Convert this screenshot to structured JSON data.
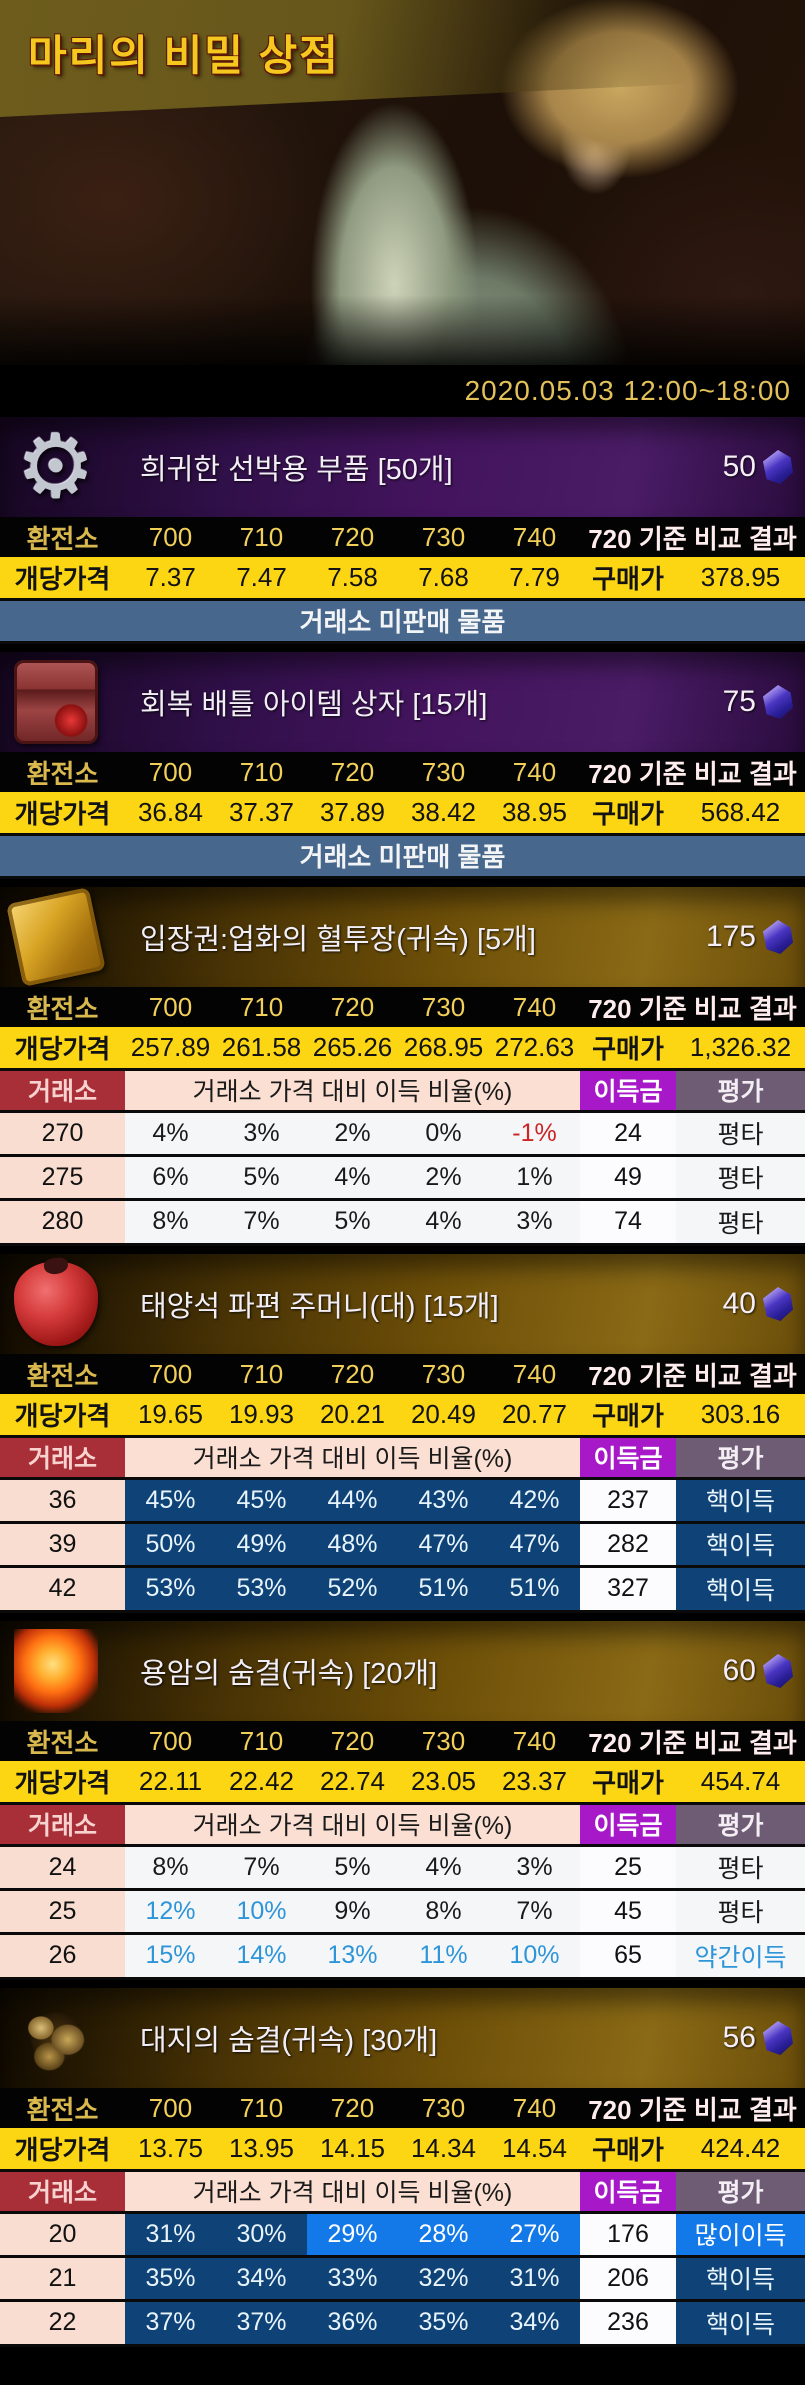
{
  "banner": {
    "title": "마리의 비밀 상점"
  },
  "date_range": "2020.05.03 12:00~18:00",
  "labels": {
    "exchange": "환전소",
    "unit_price": "개당가격",
    "compare_header": "720 기준 비교 결과",
    "purchase_price": "구매가",
    "market": "거래소",
    "ratio_header": "거래소 가격 대비 이득 비율(%)",
    "profit_amount": "이득금",
    "evaluation": "평가",
    "not_sold": "거래소 미판매 물품"
  },
  "exchange_rates": [
    "700",
    "710",
    "720",
    "730",
    "740"
  ],
  "colors": {
    "accent_gold": "#f4c81e",
    "exchange_row_bg": "#030303",
    "unit_row_bg": "#fcd612",
    "compare_header_bg": "#c2444c",
    "purchase_label_bg": "#f8bcc4",
    "not_sold_bg": "#47688c",
    "market_label_bg": "#a82f38",
    "ratio_header_bg": "#fbdfd2",
    "profit_header_bg": "#a718c8",
    "eval_header_bg": "#6e5b74",
    "huge_profit_bg": "#0f4377",
    "big_profit_bg": "#1379e8",
    "slight_profit_text": "#2e95d8",
    "negative_text": "#cc2525"
  },
  "items": [
    {
      "name": "희귀한 선박용 부품 [50개]",
      "price": "50",
      "icon": "gear-icon",
      "grade": "epic",
      "unit_prices": [
        "7.37",
        "7.47",
        "7.58",
        "7.68",
        "7.79"
      ],
      "purchase_price": "378.95",
      "not_sold": true,
      "market_rows": []
    },
    {
      "name": "회복 배틀 아이템 상자 [15개]",
      "price": "75",
      "icon": "chest-icon",
      "grade": "epic",
      "unit_prices": [
        "36.84",
        "37.37",
        "37.89",
        "38.42",
        "38.95"
      ],
      "purchase_price": "568.42",
      "not_sold": true,
      "market_rows": []
    },
    {
      "name": "입장권:업화의 혈투장(귀속) [5개]",
      "price": "175",
      "icon": "ticket-icon",
      "grade": "legendary",
      "unit_prices": [
        "257.89",
        "261.58",
        "265.26",
        "268.95",
        "272.63"
      ],
      "purchase_price": "1,326.32",
      "not_sold": false,
      "market_rows": [
        {
          "market_price": "270",
          "ratios": [
            {
              "v": "4%",
              "s": "plain"
            },
            {
              "v": "3%",
              "s": "plain"
            },
            {
              "v": "2%",
              "s": "plain"
            },
            {
              "v": "0%",
              "s": "plain"
            },
            {
              "v": "-1%",
              "s": "neg"
            }
          ],
          "profit": "24",
          "eval": "평타",
          "eval_style": "plain"
        },
        {
          "market_price": "275",
          "ratios": [
            {
              "v": "6%",
              "s": "plain"
            },
            {
              "v": "5%",
              "s": "plain"
            },
            {
              "v": "4%",
              "s": "plain"
            },
            {
              "v": "2%",
              "s": "plain"
            },
            {
              "v": "1%",
              "s": "plain"
            }
          ],
          "profit": "49",
          "eval": "평타",
          "eval_style": "plain"
        },
        {
          "market_price": "280",
          "ratios": [
            {
              "v": "8%",
              "s": "plain"
            },
            {
              "v": "7%",
              "s": "plain"
            },
            {
              "v": "5%",
              "s": "plain"
            },
            {
              "v": "4%",
              "s": "plain"
            },
            {
              "v": "3%",
              "s": "plain"
            }
          ],
          "profit": "74",
          "eval": "평타",
          "eval_style": "plain"
        }
      ]
    },
    {
      "name": "태양석 파편 주머니(대) [15개]",
      "price": "40",
      "icon": "pouch-icon",
      "grade": "legendary",
      "unit_prices": [
        "19.65",
        "19.93",
        "20.21",
        "20.49",
        "20.77"
      ],
      "purchase_price": "303.16",
      "not_sold": false,
      "market_rows": [
        {
          "market_price": "36",
          "ratios": [
            {
              "v": "45%",
              "s": "navy"
            },
            {
              "v": "45%",
              "s": "navy"
            },
            {
              "v": "44%",
              "s": "navy"
            },
            {
              "v": "43%",
              "s": "navy"
            },
            {
              "v": "42%",
              "s": "navy"
            }
          ],
          "profit": "237",
          "eval": "핵이득",
          "eval_style": "navy"
        },
        {
          "market_price": "39",
          "ratios": [
            {
              "v": "50%",
              "s": "navy"
            },
            {
              "v": "49%",
              "s": "navy"
            },
            {
              "v": "48%",
              "s": "navy"
            },
            {
              "v": "47%",
              "s": "navy"
            },
            {
              "v": "47%",
              "s": "navy"
            }
          ],
          "profit": "282",
          "eval": "핵이득",
          "eval_style": "navy"
        },
        {
          "market_price": "42",
          "ratios": [
            {
              "v": "53%",
              "s": "navy"
            },
            {
              "v": "53%",
              "s": "navy"
            },
            {
              "v": "52%",
              "s": "navy"
            },
            {
              "v": "51%",
              "s": "navy"
            },
            {
              "v": "51%",
              "s": "navy"
            }
          ],
          "profit": "327",
          "eval": "핵이득",
          "eval_style": "navy"
        }
      ]
    },
    {
      "name": "용암의 숨결(귀속) [20개]",
      "price": "60",
      "icon": "lava-icon",
      "grade": "legendary",
      "unit_prices": [
        "22.11",
        "22.42",
        "22.74",
        "23.05",
        "23.37"
      ],
      "purchase_price": "454.74",
      "not_sold": false,
      "market_rows": [
        {
          "market_price": "24",
          "ratios": [
            {
              "v": "8%",
              "s": "plain"
            },
            {
              "v": "7%",
              "s": "plain"
            },
            {
              "v": "5%",
              "s": "plain"
            },
            {
              "v": "4%",
              "s": "plain"
            },
            {
              "v": "3%",
              "s": "plain"
            }
          ],
          "profit": "25",
          "eval": "평타",
          "eval_style": "plain"
        },
        {
          "market_price": "25",
          "ratios": [
            {
              "v": "12%",
              "s": "bluetext"
            },
            {
              "v": "10%",
              "s": "bluetext"
            },
            {
              "v": "9%",
              "s": "plain"
            },
            {
              "v": "8%",
              "s": "plain"
            },
            {
              "v": "7%",
              "s": "plain"
            }
          ],
          "profit": "45",
          "eval": "평타",
          "eval_style": "plain"
        },
        {
          "market_price": "26",
          "ratios": [
            {
              "v": "15%",
              "s": "bluetext"
            },
            {
              "v": "14%",
              "s": "bluetext"
            },
            {
              "v": "13%",
              "s": "bluetext"
            },
            {
              "v": "11%",
              "s": "bluetext"
            },
            {
              "v": "10%",
              "s": "bluetext"
            }
          ],
          "profit": "65",
          "eval": "약간이득",
          "eval_style": "bluetext"
        }
      ]
    },
    {
      "name": "대지의 숨결(귀속) [30개]",
      "price": "56",
      "icon": "earth-icon",
      "grade": "legendary",
      "unit_prices": [
        "13.75",
        "13.95",
        "14.15",
        "14.34",
        "14.54"
      ],
      "purchase_price": "424.42",
      "not_sold": false,
      "market_rows": [
        {
          "market_price": "20",
          "ratios": [
            {
              "v": "31%",
              "s": "navy"
            },
            {
              "v": "30%",
              "s": "navy"
            },
            {
              "v": "29%",
              "s": "bright"
            },
            {
              "v": "28%",
              "s": "bright"
            },
            {
              "v": "27%",
              "s": "bright"
            }
          ],
          "profit": "176",
          "eval": "많이이득",
          "eval_style": "bright"
        },
        {
          "market_price": "21",
          "ratios": [
            {
              "v": "35%",
              "s": "navy"
            },
            {
              "v": "34%",
              "s": "navy"
            },
            {
              "v": "33%",
              "s": "navy"
            },
            {
              "v": "32%",
              "s": "navy"
            },
            {
              "v": "31%",
              "s": "navy"
            }
          ],
          "profit": "206",
          "eval": "핵이득",
          "eval_style": "navy"
        },
        {
          "market_price": "22",
          "ratios": [
            {
              "v": "37%",
              "s": "navy"
            },
            {
              "v": "37%",
              "s": "navy"
            },
            {
              "v": "36%",
              "s": "navy"
            },
            {
              "v": "35%",
              "s": "navy"
            },
            {
              "v": "34%",
              "s": "navy"
            }
          ],
          "profit": "236",
          "eval": "핵이득",
          "eval_style": "navy"
        }
      ]
    }
  ]
}
